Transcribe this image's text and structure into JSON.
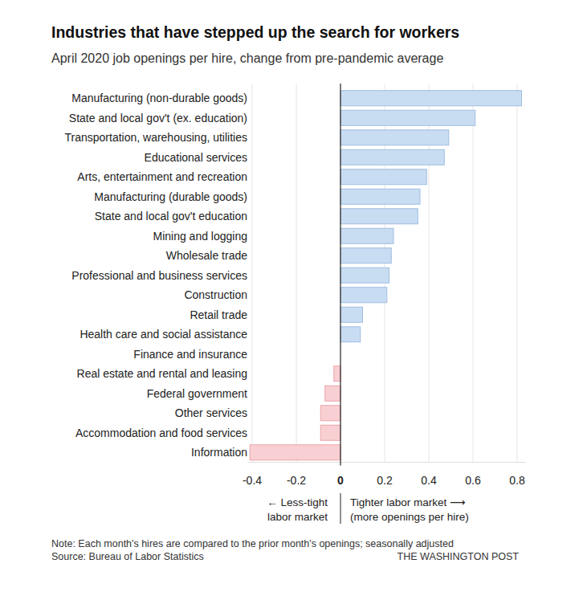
{
  "chart_data": {
    "type": "bar",
    "orientation": "horizontal",
    "title": "Industries that have stepped up the search for workers",
    "subtitle": "April 2020 job openings per hire, change from pre-pandemic average",
    "categories": [
      "Manufacturing (non-durable goods)",
      "State and local gov't (ex. education)",
      "Transportation, warehousing, utilities",
      "Educational services",
      "Arts, entertainment and recreation",
      "Manufacturing (durable goods)",
      "State and local gov't education",
      "Mining and logging",
      "Wholesale trade",
      "Professional and business services",
      "Construction",
      "Retail trade",
      "Health care and social assistance",
      "Finance and insurance",
      "Real estate and rental and leasing",
      "Federal government",
      "Other services",
      "Accommodation and food services",
      "Information"
    ],
    "values": [
      0.82,
      0.61,
      0.49,
      0.47,
      0.39,
      0.36,
      0.35,
      0.24,
      0.23,
      0.22,
      0.21,
      0.1,
      0.09,
      0,
      -0.03,
      -0.07,
      -0.09,
      -0.09,
      -0.41
    ],
    "colors": [
      "#c9ddf2",
      "#c9ddf2",
      "#c9ddf2",
      "#c9ddf2",
      "#c9ddf2",
      "#c9ddf2",
      "#c9ddf2",
      "#c9ddf2",
      "#c9ddf2",
      "#c9ddf2",
      "#c9ddf2",
      "#c9ddf2",
      "#c9ddf2",
      "#c9ddf2",
      "#f8d0d3",
      "#f8d0d3",
      "#f8d0d3",
      "#f8d0d3",
      "#f8d0d3"
    ],
    "xlim": [
      -0.42,
      0.84
    ],
    "xticks": [
      -0.4,
      -0.2,
      0,
      0.2,
      0.4,
      0.6,
      0.8
    ],
    "grid": true,
    "annotations": [
      "← Less-tight",
      "labor market",
      "Tighter labor market ⟶",
      "(more openings per hire)"
    ],
    "note": "Note: Each month's hires are compared to the prior month's openings; seasonally adjusted",
    "source": "Source: Bureau of Labor Statistics",
    "credit": "THE WASHINGTON POST"
  }
}
